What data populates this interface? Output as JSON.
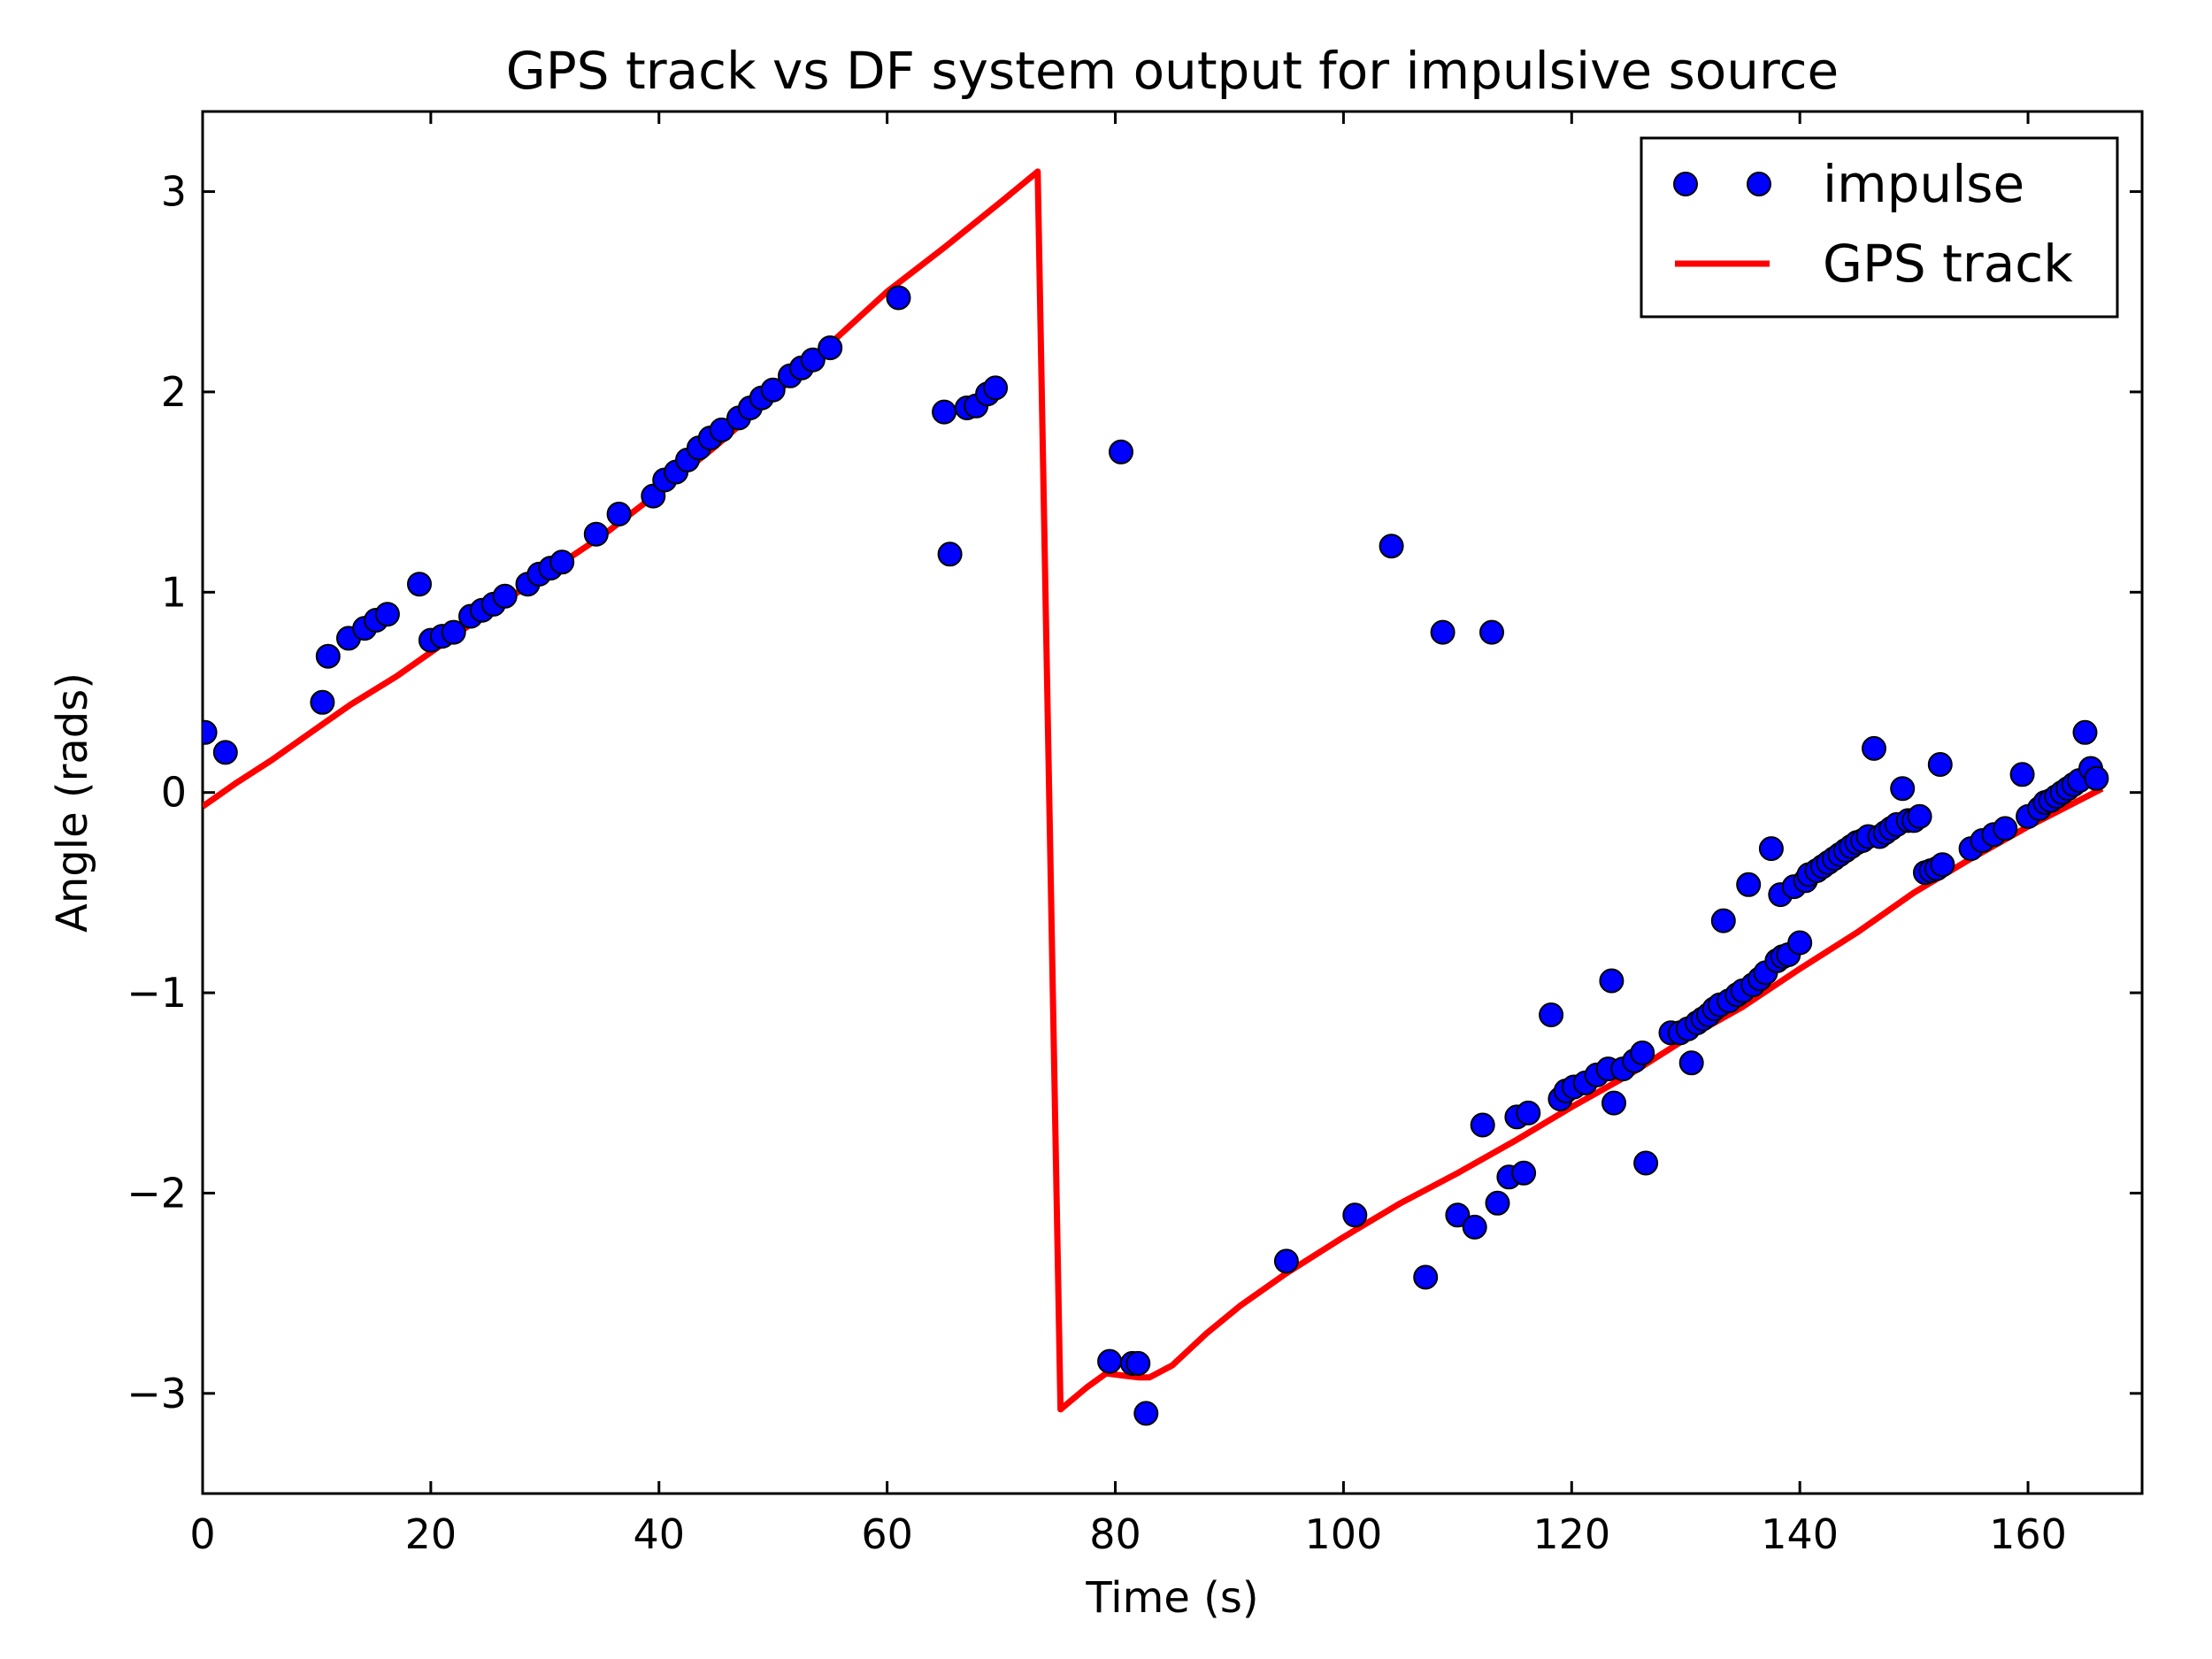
{
  "chart_data": {
    "type": "line",
    "title": "GPS track vs DF system output for impulsive source",
    "xlabel": "Time (s)",
    "ylabel": "Angle (rads)",
    "xlim": [
      0,
      170
    ],
    "ylim": [
      -3.5,
      3.4
    ],
    "x_ticks": [
      0,
      20,
      40,
      60,
      80,
      100,
      120,
      140,
      160
    ],
    "y_ticks": [
      -3,
      -2,
      -1,
      0,
      1,
      2,
      3
    ],
    "y_tick_labels": [
      "−3",
      "−2",
      "−1",
      "0",
      "1",
      "2",
      "3"
    ],
    "grid": false,
    "legend_position": "top-right",
    "series": [
      {
        "name": "impulse",
        "kind": "scatter",
        "color": "#0000ff",
        "edge_color": "#000000",
        "x": [
          0.2,
          2.0,
          10.5,
          11.0,
          12.8,
          14.2,
          15.2,
          16.2,
          19.0,
          20.0,
          21.0,
          22.0,
          23.5,
          24.5,
          25.5,
          26.5,
          28.5,
          29.5,
          30.5,
          31.5,
          34.5,
          36.5,
          39.5,
          40.5,
          41.5,
          42.5,
          43.5,
          44.5,
          45.5,
          47.0,
          48.0,
          49.0,
          50.0,
          51.5,
          52.5,
          53.5,
          55.0,
          61.0,
          65.0,
          65.5,
          67.0,
          67.8,
          68.8,
          69.5,
          79.5,
          80.5,
          81.5,
          82.0,
          82.7,
          95.0,
          101.0,
          104.2,
          107.2,
          108.7,
          110.0,
          111.5,
          112.2,
          113.0,
          113.5,
          114.5,
          115.2,
          115.8,
          116.2,
          118.2,
          119.0,
          119.5,
          120.2,
          121.2,
          122.2,
          123.2,
          123.5,
          123.7,
          124.5,
          125.5,
          126.2,
          126.5,
          128.7,
          129.5,
          130.2,
          130.5,
          131.0,
          131.5,
          132.0,
          132.5,
          133.0,
          133.3,
          133.8,
          134.5,
          135.0,
          135.5,
          135.9,
          136.5,
          137.0,
          137.5,
          138.0,
          138.3,
          138.5,
          139.0,
          139.5,
          140.0,
          140.5,
          140.8,
          141.5,
          142.0,
          142.5,
          143.0,
          143.5,
          144.0,
          144.5,
          145.0,
          145.5,
          146.0,
          146.5,
          147.0,
          147.5,
          148.0,
          148.5,
          149.0,
          149.5,
          150.0,
          150.5,
          151.0,
          151.5,
          152.0,
          152.3,
          152.5,
          155.0,
          156.0,
          157.0,
          158.0,
          159.5,
          160.0,
          161.0,
          161.5,
          162.0,
          162.5,
          163.0,
          163.5,
          164.0,
          164.5,
          165.0,
          165.5,
          166.0
        ],
        "y": [
          0.3,
          0.2,
          0.45,
          0.68,
          0.77,
          0.82,
          0.86,
          0.89,
          1.04,
          0.76,
          0.78,
          0.8,
          0.88,
          0.91,
          0.94,
          0.98,
          1.04,
          1.09,
          1.12,
          1.15,
          1.29,
          1.39,
          1.48,
          1.56,
          1.6,
          1.66,
          1.72,
          1.77,
          1.81,
          1.87,
          1.92,
          1.97,
          2.01,
          2.08,
          2.12,
          2.16,
          2.22,
          2.47,
          1.9,
          1.19,
          1.92,
          1.93,
          1.99,
          2.02,
          -2.84,
          1.7,
          -2.85,
          -2.85,
          -3.1,
          -2.34,
          -2.11,
          1.23,
          -2.42,
          0.8,
          -2.11,
          -2.17,
          -1.66,
          0.8,
          -2.05,
          -1.92,
          -1.62,
          -1.9,
          -1.6,
          -1.11,
          -1.53,
          -1.49,
          -1.47,
          -1.45,
          -1.41,
          -1.38,
          -0.94,
          -1.55,
          -1.38,
          -1.34,
          -1.3,
          -1.85,
          -1.2,
          -1.2,
          -1.18,
          -1.35,
          -1.15,
          -1.13,
          -1.11,
          -1.08,
          -1.06,
          -0.64,
          -1.04,
          -1.01,
          -0.99,
          -0.46,
          -0.96,
          -0.93,
          -0.9,
          -0.28,
          -0.84,
          -0.51,
          -0.82,
          -0.81,
          -0.47,
          -0.75,
          -0.44,
          -0.41,
          -0.39,
          -0.37,
          -0.35,
          -0.33,
          -0.31,
          -0.29,
          -0.27,
          -0.25,
          -0.24,
          -0.22,
          0.22,
          -0.22,
          -0.2,
          -0.18,
          -0.16,
          0.02,
          -0.14,
          -0.14,
          -0.12,
          -0.4,
          -0.39,
          -0.38,
          0.14,
          -0.36,
          -0.28,
          -0.24,
          -0.21,
          -0.18,
          0.09,
          -0.12,
          -0.08,
          -0.05,
          -0.04,
          -0.02,
          0.0,
          0.02,
          0.04,
          0.06,
          0.3,
          0.12,
          0.07
        ]
      },
      {
        "name": "GPS track",
        "kind": "line",
        "color": "#ff0000",
        "x": [
          0,
          3,
          6,
          10,
          13,
          17,
          20,
          25,
          30,
          35,
          40,
          45,
          50,
          55,
          60,
          65,
          70,
          73.2,
          75.2,
          77.5,
          79.2,
          80.5,
          82.0,
          83.0,
          85.0,
          88.0,
          91.0,
          95.0,
          100.0,
          105.0,
          110.0,
          115.0,
          120.0,
          125.0,
          130.0,
          135.0,
          140.0,
          145.0,
          150.0,
          155.0,
          160.0,
          166.5
        ],
        "y": [
          -0.07,
          0.05,
          0.16,
          0.32,
          0.44,
          0.58,
          0.7,
          0.9,
          1.09,
          1.28,
          1.5,
          1.73,
          1.98,
          2.24,
          2.5,
          2.72,
          2.95,
          3.1,
          -3.08,
          -2.97,
          -2.9,
          -2.91,
          -2.92,
          -2.92,
          -2.86,
          -2.7,
          -2.56,
          -2.4,
          -2.22,
          -2.05,
          -1.9,
          -1.74,
          -1.57,
          -1.41,
          -1.23,
          -1.07,
          -0.88,
          -0.7,
          -0.5,
          -0.33,
          -0.17,
          0.02
        ]
      }
    ]
  }
}
